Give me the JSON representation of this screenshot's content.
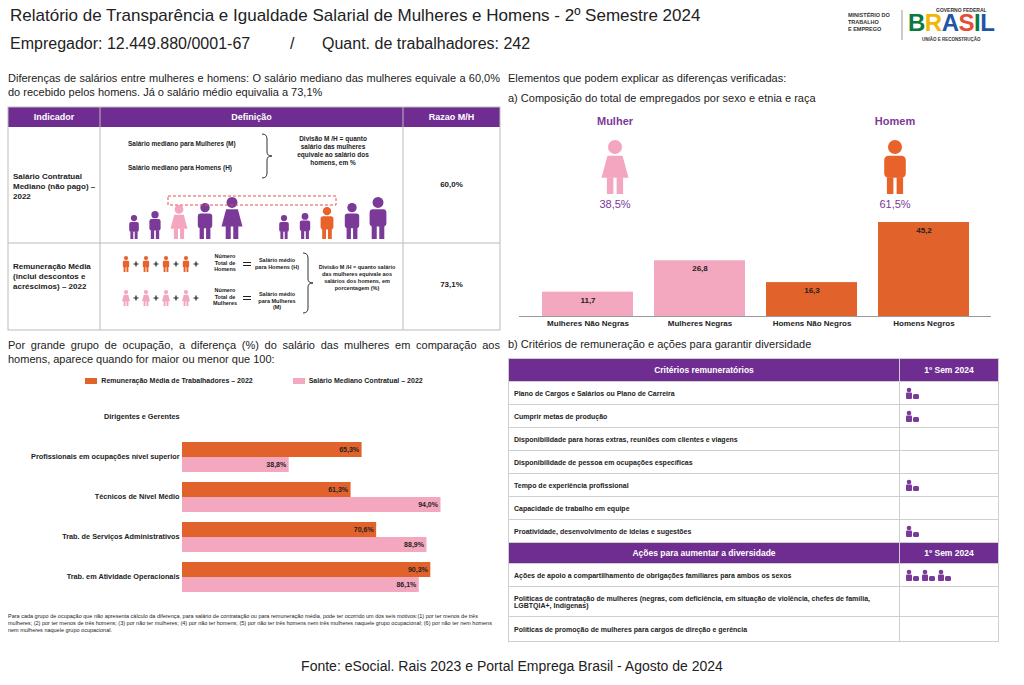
{
  "header": {
    "title": "Relatório de Transparência e Igualdade Salarial de Mulheres e Homens - 2º Semestre 2024",
    "employer": "Empregador: 12.449.880/0001-67",
    "separator": "/",
    "workers": "Quant. de trabalhadores: 242"
  },
  "logo": {
    "ministry": [
      "MINISTÉRIO DO",
      "TRABALHO",
      "E EMPREGO"
    ],
    "government": "GOVERNO FEDERAL",
    "country": "BRASIL",
    "slogan": "UNIÃO E RECONSTRUÇÃO"
  },
  "summary": "Diferenças de salários entre mulheres e homens: O salário mediano das mulheres equivale a 60,0% do recebido pelos homens. Já o salário médio equivalia a 73,1%",
  "indicator_table": {
    "columns": [
      "Indicador",
      "Definição",
      "Razao M/H"
    ],
    "rows": [
      {
        "indicator": "Salário Contratual Mediano (não pago) – 2022",
        "definition": {
          "women": "Salário mediano para Mulheres (M)",
          "men": "Salário mediano para Homens (H)",
          "division": "Divisão M /H = quanto salário das mulheres equivale ao salário dos homens, em %"
        },
        "ratio": "60,0%"
      },
      {
        "indicator": "Remuneração Média (inclui descontos e acréscimos) – 2022",
        "definition": {
          "men_count": "Número Total de Homens",
          "men_result": "Salário médio para Homens (H)",
          "women_count": "Número Total de Mulheres",
          "women_result": "Salário médio para Mulheres (M)",
          "division": "Divisão M /H = quanto salário das mulheres equivale aos salários dos homens, em porcentagem (%)"
        },
        "ratio": "73,1%"
      }
    ]
  },
  "occupation_footnote": "Para cada grupo de ocupação que não apresenta cálculo da diferença, para salário de contratação ou para remuneração média, pode ter ocorrido um dos seis motivos:(1) por ter menos de três mulheres; (2) por ter menos de três homens; (3) por não ter mulheres; (4) por não ter homens; (5) por não ter três homens nem três mulheres naquele grupo ocupacional; (6) por não ter nem homens nem mulheres naquele grupo ocupacional.",
  "explain_section": {
    "title": "Elementos que podem explicar as diferenças verificadas:",
    "subtitle_a": "a) Composição do total de empregados por sexo e etnia e raça",
    "gender": [
      {
        "label": "Mulher",
        "share": "38,5%",
        "color": "#f4a6c0"
      },
      {
        "label": "Homem",
        "share": "61,5%",
        "color": "#e8622a"
      }
    ],
    "subtitle_b": "b) Critérios de remuneração e ações para garantir diversidade"
  },
  "criteria_table": {
    "sections": [
      {
        "header": "Critérios remuneratórios",
        "period": "1º Sem 2024",
        "rows": [
          {
            "text": "Plano de Cargos e Salários ou Plano de Carreira",
            "icons": 1
          },
          {
            "text": "Cumprir metas de produção",
            "icons": 1
          },
          {
            "text": "Disponibilidade para horas extras, reuniões com clientes e viagens",
            "icons": 0
          },
          {
            "text": "Disponibilidade de pessoa em ocupações específicas",
            "icons": 0
          },
          {
            "text": "Tempo de experiência profissional",
            "icons": 1
          },
          {
            "text": "Capacidade de trabalho em equipe",
            "icons": 0
          },
          {
            "text": "Proatividade, desenvolvimento de ideias e sugestões",
            "icons": 1
          }
        ]
      },
      {
        "header": "Ações para aumentar a diversidade",
        "period": "1º Sem 2024",
        "rows": [
          {
            "text": "Ações de apoio a compartilhamento de obrigações familiares para ambos os sexos",
            "icons": 3
          },
          {
            "text": "Políticas de contratação de mulheres (negras, com deficiência, em situação de violência, chefes de família, LGBTQIA+, Indígenas)",
            "icons": 0
          },
          {
            "text": "Políticas de promoção de mulheres para cargos de direção e gerência",
            "icons": 0
          }
        ]
      }
    ]
  },
  "chart_data": [
    {
      "type": "bar",
      "categories": [
        "Mulheres Não Negras",
        "Mulheres Negras",
        "Homens Não Negros",
        "Homens Negros"
      ],
      "values": [
        11.7,
        26.8,
        16.3,
        45.2
      ],
      "value_labels": [
        "11,7",
        "26,8",
        "16,3",
        "45,2"
      ],
      "colors": [
        "#f4a8c0",
        "#f4a8c0",
        "#e2622b",
        "#e2622b"
      ],
      "ylim": [
        0,
        45.2
      ],
      "data_labels": true,
      "tick_labels": "x"
    },
    {
      "type": "bar",
      "orientation": "horizontal",
      "title": "Por grande grupo de ocupação, a diferença (%) do salário das mulheres em comparação aos homens, aparece quando for maior ou menor que 100:",
      "categories": [
        "Dirigentes e Gerentes",
        "Profissionais em ocupações nível superior",
        "Técnicos de Nível Médio",
        "Trab. de Serviços Administrativos",
        "Trab. em Atividade Operacionais"
      ],
      "series": [
        {
          "name": "Remuneração Média de Trabalhadores – 2022",
          "color": "#e2622b",
          "values": [
            null,
            65.3,
            61.3,
            70.6,
            90.3
          ],
          "value_labels": [
            null,
            "65,3%",
            "61,3%",
            "70,6%",
            "90,3%"
          ]
        },
        {
          "name": "Salário Mediano Contratual – 2022",
          "color": "#f4a8c0",
          "values": [
            null,
            38.8,
            94.0,
            88.9,
            86.1
          ],
          "value_labels": [
            null,
            "38,8%",
            "94,0%",
            "88,9%",
            "86,1%"
          ]
        }
      ],
      "xlim": [
        0,
        100
      ],
      "data_labels": true,
      "tick_labels": "y",
      "legend": "top"
    }
  ],
  "footer": "Fonte: eSocial. Rais 2023 e Portal Emprega Brasil - Agosto de 2024"
}
